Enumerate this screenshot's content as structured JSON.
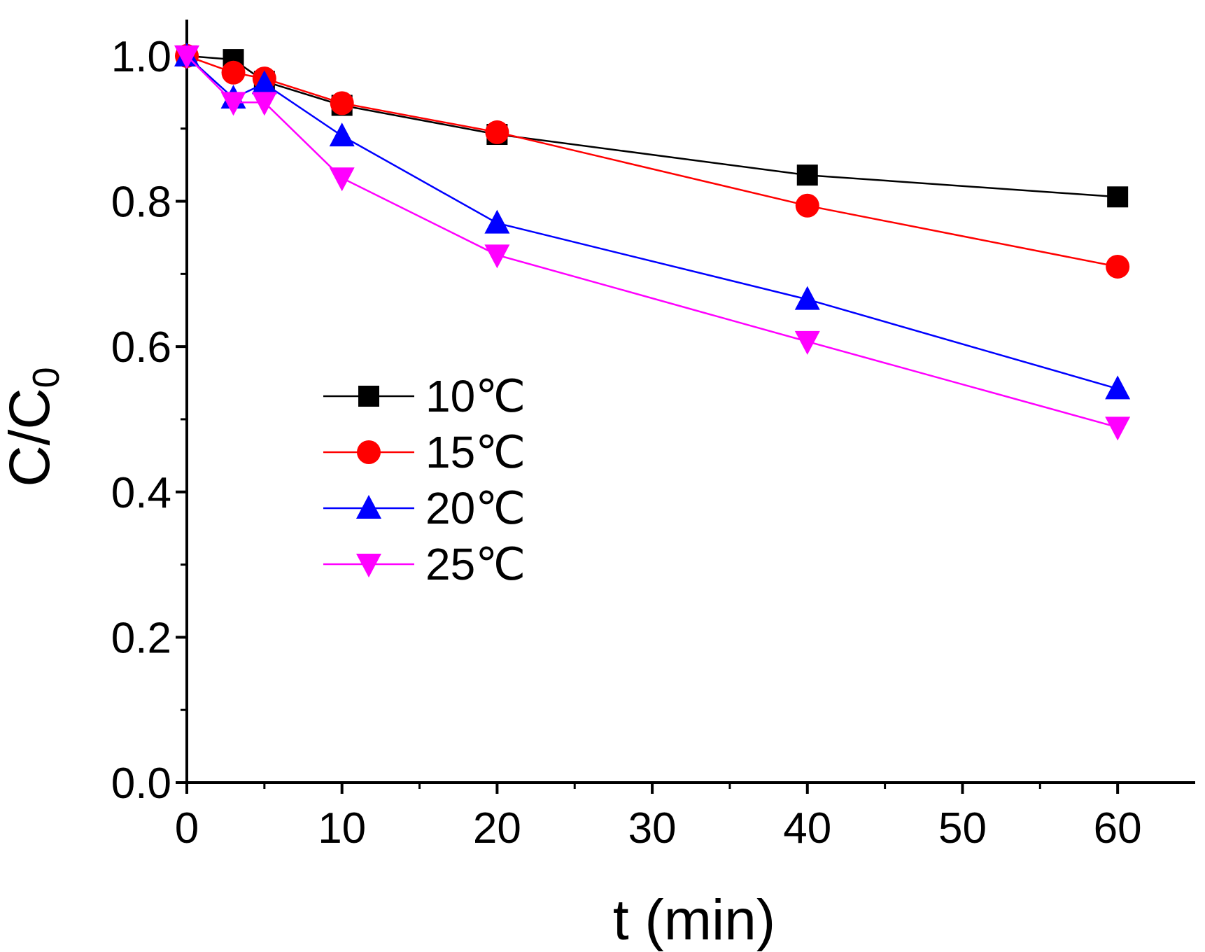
{
  "chart_data": {
    "type": "line",
    "title": "",
    "xlabel": "t (min)",
    "ylabel": "C/C",
    "ylabel_subscript": "0",
    "xlim": [
      0,
      65
    ],
    "ylim": [
      0,
      1.05
    ],
    "grid": false,
    "legend_position": "center-left",
    "x_ticks": [
      0,
      10,
      20,
      30,
      40,
      50,
      60
    ],
    "x_tick_labels": [
      "0",
      "10",
      "20",
      "30",
      "40",
      "50",
      "60"
    ],
    "y_ticks": [
      0,
      0.2,
      0.4,
      0.6,
      0.8,
      1.0
    ],
    "y_tick_labels": [
      "0.0",
      "0.2",
      "0.4",
      "0.6",
      "0.8",
      "1.0"
    ],
    "x": [
      0,
      3,
      5,
      10,
      20,
      40,
      60
    ],
    "series": [
      {
        "name": "10℃",
        "color": "#000000",
        "marker": "square",
        "values": [
          1.0,
          0.995,
          0.965,
          0.932,
          0.892,
          0.836,
          0.806
        ]
      },
      {
        "name": "15℃",
        "color": "#ff0000",
        "marker": "circle",
        "values": [
          1.0,
          0.977,
          0.969,
          0.935,
          0.895,
          0.794,
          0.71
        ]
      },
      {
        "name": "20℃",
        "color": "#0000ff",
        "marker": "triangle-up",
        "values": [
          1.0,
          0.942,
          0.962,
          0.89,
          0.77,
          0.665,
          0.542
        ]
      },
      {
        "name": "25℃",
        "color": "#ff00ff",
        "marker": "triangle-down",
        "values": [
          1.0,
          0.936,
          0.936,
          0.832,
          0.726,
          0.607,
          0.489
        ]
      }
    ]
  }
}
